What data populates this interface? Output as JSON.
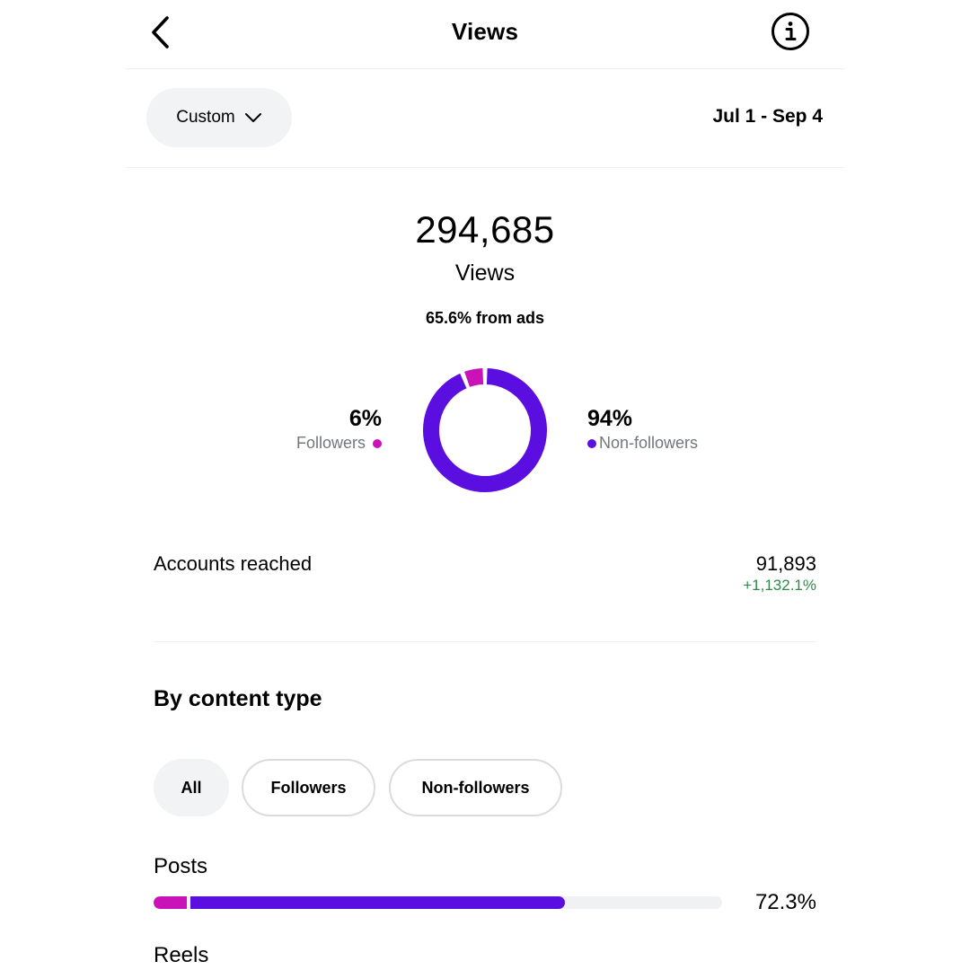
{
  "header": {
    "title": "Views",
    "back_icon": "chevron-left-icon",
    "info_icon": "info-icon"
  },
  "filter": {
    "period_label": "Custom",
    "period_icon": "chevron-down-icon",
    "date_range": "Jul 1 - Sep 4"
  },
  "summary": {
    "total": "294,685",
    "label": "Views",
    "ads_note": "65.6% from ads"
  },
  "audience": {
    "followers": {
      "percent_label": "6%",
      "label": "Followers",
      "color": "#c913b9",
      "fraction": 0.06
    },
    "non_followers": {
      "percent_label": "94%",
      "label": "Non-followers",
      "color": "#5b0ee0",
      "fraction": 0.94
    }
  },
  "reach": {
    "label": "Accounts reached",
    "value": "91,893",
    "change": "+1,132.1%",
    "change_color": "#2e8b47"
  },
  "content_type": {
    "title": "By content type",
    "filters": [
      {
        "label": "All",
        "selected": true
      },
      {
        "label": "Followers",
        "selected": false
      },
      {
        "label": "Non-followers",
        "selected": false
      }
    ],
    "items": [
      {
        "label": "Posts",
        "percent_label": "72.3%",
        "total_fraction": 0.723,
        "followers_fraction": 0.08
      },
      {
        "label": "Reels"
      }
    ]
  }
}
